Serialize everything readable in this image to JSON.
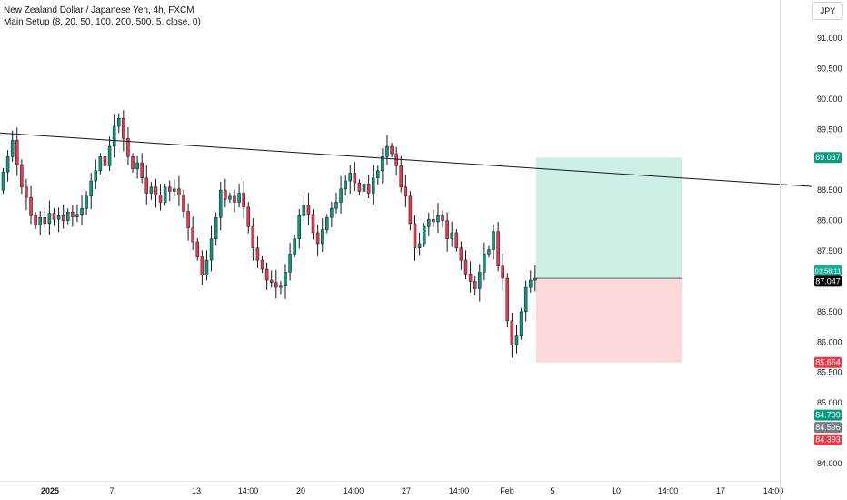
{
  "header": {
    "title": "New Zealand Dollar / Japanese Yen, 4h, FXCM",
    "indicator": "Main Setup (8, 20, 50, 100, 200, 500, 5, close, 0)"
  },
  "scale": {
    "currency": "JPY",
    "price_ticks": [
      "91.000",
      "90.500",
      "90.000",
      "89.500",
      "89.000",
      "88.500",
      "88.000",
      "87.500",
      "87.000",
      "86.500",
      "86.000",
      "85.500",
      "85.000",
      "84.000"
    ]
  },
  "time_axis": {
    "labels": [
      "2025",
      "7",
      "13",
      "14:00",
      "20",
      "14:00",
      "27",
      "14:00",
      "Feb",
      "5",
      "10",
      "14:00",
      "17",
      "14:00"
    ]
  },
  "price_labels": {
    "target": {
      "value": "89.037",
      "color": "#089981"
    },
    "countdown": {
      "value": "01:56:11",
      "color": "#22ab94"
    },
    "current": {
      "value": "87.047",
      "color": "#000000"
    },
    "stop": {
      "value": "85.664",
      "color": "#f23645"
    },
    "level_a": {
      "value": "84.799",
      "color": "#089981"
    },
    "level_b": {
      "value": "84.596",
      "color": "#787b86"
    },
    "level_c": {
      "value": "84.393",
      "color": "#f23645"
    }
  },
  "position_tool": {
    "entry": 87.05,
    "target": 89.037,
    "stop": 85.664,
    "profit_color": "#cdeee7",
    "loss_color": "#fcd9d9"
  },
  "colors": {
    "up": "#089981",
    "down": "#f23645",
    "trendline": "#131722"
  },
  "chart_data": {
    "type": "candlestick",
    "title": "New Zealand Dollar / Japanese Yen, 4h, FXCM",
    "xlabel": "",
    "ylabel": "",
    "ylim": [
      83.6,
      91.4
    ],
    "trendline": {
      "start": 89.44,
      "end": 88.56
    },
    "closes": [
      88.8,
      89.05,
      89.32,
      88.92,
      88.55,
      88.38,
      88.08,
      87.92,
      88.05,
      87.95,
      88.12,
      88.02,
      88.08,
      88.0,
      88.14,
      88.06,
      88.1,
      88.2,
      88.4,
      88.65,
      88.82,
      89.05,
      88.9,
      89.22,
      89.55,
      89.68,
      89.35,
      89.05,
      88.85,
      88.95,
      88.7,
      88.45,
      88.55,
      88.42,
      88.3,
      88.55,
      88.48,
      88.52,
      88.42,
      88.15,
      87.88,
      87.65,
      87.4,
      87.1,
      87.35,
      87.7,
      88.05,
      88.5,
      88.35,
      88.4,
      88.3,
      88.45,
      88.22,
      87.9,
      87.55,
      87.35,
      87.2,
      87.02,
      86.98,
      86.9,
      86.92,
      87.15,
      87.45,
      87.7,
      88.08,
      88.25,
      88.1,
      87.8,
      87.62,
      87.85,
      88.05,
      88.2,
      88.3,
      88.52,
      88.65,
      88.78,
      88.62,
      88.48,
      88.6,
      88.45,
      88.7,
      88.82,
      89.05,
      89.22,
      89.1,
      88.9,
      88.55,
      88.4,
      87.95,
      87.55,
      87.62,
      87.9,
      88.02,
      87.98,
      88.08,
      88.0,
      87.7,
      87.8,
      87.55,
      87.35,
      87.12,
      87.0,
      86.88,
      87.15,
      87.45,
      87.52,
      87.82,
      87.25,
      87.05,
      86.35,
      85.95,
      86.1,
      86.5,
      86.9,
      87.02,
      87.05
    ]
  }
}
